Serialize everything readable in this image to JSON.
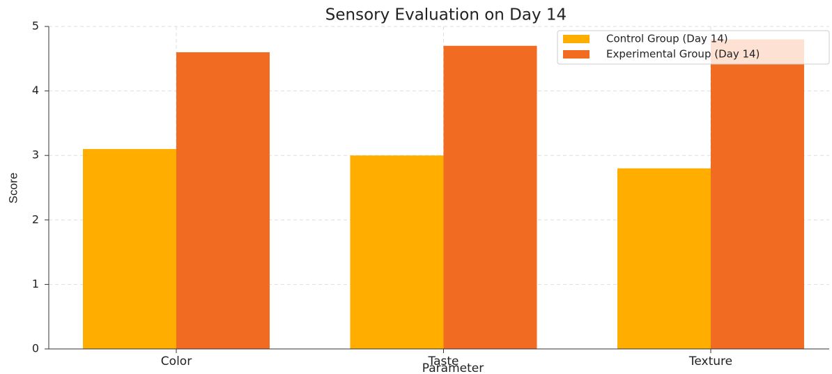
{
  "chart_data": {
    "type": "bar",
    "title": "Sensory Evaluation on Day 14",
    "xlabel": "Parameter",
    "ylabel": "Score",
    "categories": [
      "Color",
      "Taste",
      "Texture"
    ],
    "series": [
      {
        "name": "Control Group (Day 14)",
        "color": "#ffae00",
        "values": [
          3.1,
          3.0,
          2.8
        ]
      },
      {
        "name": "Experimental Group (Day 14)",
        "color": "#f26b22",
        "values": [
          4.6,
          4.7,
          4.8
        ]
      }
    ],
    "ylim": [
      0,
      5
    ],
    "yticks": [
      0,
      1,
      2,
      3,
      4,
      5
    ],
    "grid": true,
    "legend": "upper right"
  }
}
